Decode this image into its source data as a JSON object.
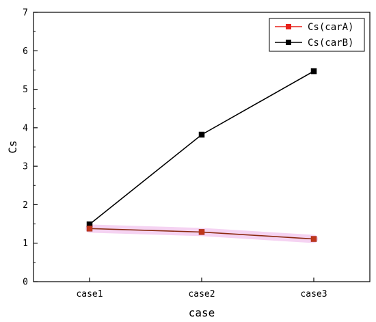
{
  "chart_data": {
    "type": "line",
    "categories": [
      "case1",
      "case2",
      "case3"
    ],
    "xlabel": "case",
    "ylabel": "Cs",
    "ylim": [
      0,
      7
    ],
    "yticks": [
      "0",
      "1",
      "2",
      "3",
      "4",
      "5",
      "6",
      "7"
    ],
    "grid": false,
    "legend_position": "top-right",
    "series": [
      {
        "name": "Cs(carA)",
        "values": [
          1.38,
          1.29,
          1.11
        ],
        "color": "#e8201a",
        "marker": "square"
      },
      {
        "name": "Cs(carB)",
        "values": [
          1.49,
          3.82,
          5.47
        ],
        "color": "#000000",
        "marker": "square"
      }
    ]
  }
}
